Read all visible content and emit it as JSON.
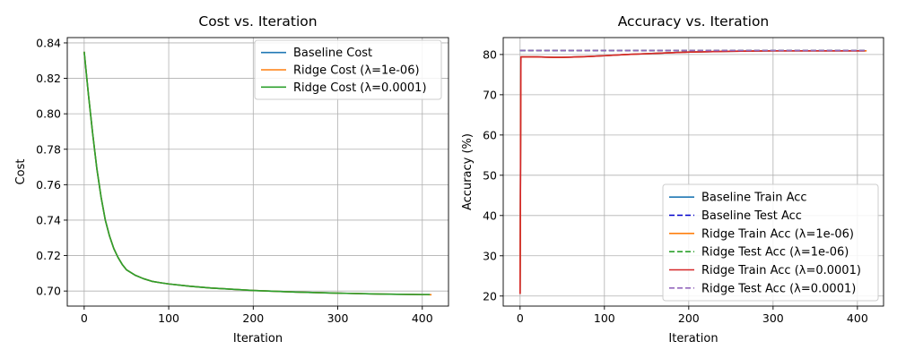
{
  "chart_data": [
    {
      "type": "line",
      "title": "Cost vs. Iteration",
      "xlabel": "Iteration",
      "ylabel": "Cost",
      "xlim": [
        -20,
        431
      ],
      "ylim": [
        0.6915,
        0.843
      ],
      "xticks": [
        0,
        100,
        200,
        300,
        400
      ],
      "yticks": [
        0.7,
        0.72,
        0.74,
        0.76,
        0.78,
        0.8,
        0.82,
        0.84
      ],
      "ytick_decimals": 2,
      "grid": true,
      "legend_position": "upper-right",
      "series": [
        {
          "name": "Baseline Cost",
          "color": "#1f77b4",
          "style": "solid",
          "x": [
            0,
            5,
            10,
            15,
            20,
            25,
            30,
            35,
            40,
            45,
            50,
            60,
            70,
            80,
            90,
            100,
            125,
            150,
            175,
            200,
            250,
            300,
            350,
            400,
            409
          ],
          "y": [
            0.835,
            0.811,
            0.789,
            0.769,
            0.753,
            0.74,
            0.731,
            0.724,
            0.719,
            0.715,
            0.712,
            0.709,
            0.707,
            0.7055,
            0.7047,
            0.704,
            0.7027,
            0.7017,
            0.701,
            0.7003,
            0.6994,
            0.6988,
            0.6983,
            0.698,
            0.698
          ]
        },
        {
          "name": "Ridge Cost (λ=1e-06)",
          "color": "#ff7f0e",
          "style": "solid",
          "x": [
            0,
            5,
            10,
            15,
            20,
            25,
            30,
            35,
            40,
            45,
            50,
            60,
            70,
            80,
            90,
            100,
            125,
            150,
            175,
            200,
            250,
            300,
            350,
            400,
            411
          ],
          "y": [
            0.835,
            0.811,
            0.789,
            0.769,
            0.753,
            0.74,
            0.731,
            0.724,
            0.719,
            0.715,
            0.712,
            0.709,
            0.707,
            0.7055,
            0.7047,
            0.704,
            0.7027,
            0.7017,
            0.701,
            0.7003,
            0.6994,
            0.6988,
            0.6983,
            0.698,
            0.6979
          ]
        },
        {
          "name": "Ridge Cost (λ=0.0001)",
          "color": "#2ca02c",
          "style": "solid",
          "x": [
            0,
            5,
            10,
            15,
            20,
            25,
            30,
            35,
            40,
            45,
            50,
            60,
            70,
            80,
            90,
            100,
            125,
            150,
            175,
            200,
            250,
            300,
            350,
            400,
            409
          ],
          "y": [
            0.835,
            0.811,
            0.789,
            0.769,
            0.753,
            0.74,
            0.731,
            0.724,
            0.719,
            0.715,
            0.712,
            0.709,
            0.707,
            0.7055,
            0.7047,
            0.704,
            0.7027,
            0.7017,
            0.701,
            0.7003,
            0.6994,
            0.6988,
            0.6983,
            0.698,
            0.698
          ]
        }
      ]
    },
    {
      "type": "line",
      "title": "Accuracy vs. Iteration",
      "xlabel": "Iteration",
      "ylabel": "Accuracy (%)",
      "xlim": [
        -20,
        431
      ],
      "ylim": [
        17.5,
        84.2
      ],
      "xticks": [
        0,
        100,
        200,
        300,
        400
      ],
      "yticks": [
        20,
        30,
        40,
        50,
        60,
        70,
        80
      ],
      "ytick_decimals": 0,
      "grid": true,
      "legend_position": "lower-right",
      "series": [
        {
          "name": "Baseline Train Acc",
          "color": "#1f77b4",
          "style": "solid",
          "x": [
            0,
            1,
            2,
            5,
            10,
            20,
            30,
            40,
            50,
            60,
            80,
            100,
            125,
            150,
            175,
            200,
            250,
            300,
            350,
            400,
            409
          ],
          "y": [
            20.5,
            79.4,
            79.4,
            79.4,
            79.4,
            79.4,
            79.35,
            79.3,
            79.3,
            79.35,
            79.5,
            79.7,
            80.0,
            80.2,
            80.4,
            80.6,
            80.8,
            80.9,
            80.9,
            80.9,
            80.9
          ]
        },
        {
          "name": "Baseline Test Acc",
          "color": "#0000cc",
          "style": "dashed",
          "x": [
            0,
            409
          ],
          "y": [
            81.0,
            81.0
          ]
        },
        {
          "name": "Ridge Train Acc (λ=1e-06)",
          "color": "#ff7f0e",
          "style": "solid",
          "x": [
            0,
            1,
            2,
            5,
            10,
            20,
            30,
            40,
            50,
            60,
            80,
            100,
            125,
            150,
            175,
            200,
            250,
            300,
            350,
            400,
            411
          ],
          "y": [
            20.5,
            79.4,
            79.4,
            79.4,
            79.4,
            79.4,
            79.35,
            79.3,
            79.3,
            79.35,
            79.5,
            79.7,
            80.0,
            80.2,
            80.4,
            80.6,
            80.8,
            80.9,
            80.9,
            80.9,
            80.9
          ]
        },
        {
          "name": "Ridge Test Acc (λ=1e-06)",
          "color": "#2ca02c",
          "style": "dashed",
          "x": [
            0,
            411
          ],
          "y": [
            81.0,
            81.0
          ]
        },
        {
          "name": "Ridge Train Acc (λ=0.0001)",
          "color": "#d62728",
          "style": "solid",
          "x": [
            0,
            1,
            2,
            5,
            10,
            20,
            30,
            40,
            50,
            60,
            80,
            100,
            125,
            150,
            175,
            200,
            250,
            300,
            350,
            400,
            409
          ],
          "y": [
            20.5,
            79.4,
            79.4,
            79.4,
            79.4,
            79.4,
            79.35,
            79.3,
            79.3,
            79.35,
            79.5,
            79.7,
            80.0,
            80.2,
            80.4,
            80.6,
            80.8,
            80.9,
            80.9,
            80.9,
            80.9
          ]
        },
        {
          "name": "Ridge Test Acc (λ=0.0001)",
          "color": "#9467bd",
          "style": "dashed",
          "x": [
            0,
            409
          ],
          "y": [
            81.0,
            81.0
          ]
        }
      ]
    }
  ]
}
